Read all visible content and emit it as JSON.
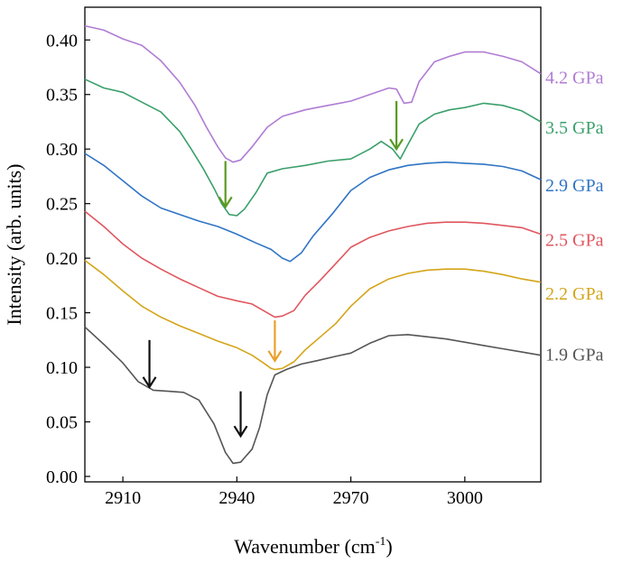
{
  "chart_data": {
    "type": "line",
    "title": "",
    "xlabel_main": "Wavenumber (cm",
    "xlabel_sup": "-1",
    "xlabel_close": ")",
    "ylabel": "Intensity (arb. units)",
    "xlim": [
      2900,
      3020
    ],
    "ylim": [
      -0.005,
      0.43
    ],
    "xticks": [
      2910,
      2940,
      2970,
      3000
    ],
    "yticks": [
      0.0,
      0.05,
      0.1,
      0.15,
      0.2,
      0.25,
      0.3,
      0.35,
      0.4
    ],
    "yticks_text": [
      "0.00",
      "0.05",
      "0.10",
      "0.15",
      "0.20",
      "0.25",
      "0.30",
      "0.35",
      "0.40"
    ],
    "series": [
      {
        "name": "1.9 GPa",
        "color": "#555555",
        "x": [
          2900,
          2905,
          2910,
          2914,
          2918,
          2922,
          2926,
          2930,
          2934,
          2937,
          2939,
          2941,
          2944,
          2946,
          2948,
          2950,
          2953,
          2957,
          2961,
          2966,
          2970,
          2975,
          2980,
          2985,
          2990,
          2995,
          3000,
          3005,
          3010,
          3015,
          3020
        ],
        "y": [
          0.137,
          0.121,
          0.104,
          0.087,
          0.079,
          0.078,
          0.077,
          0.07,
          0.048,
          0.022,
          0.012,
          0.013,
          0.025,
          0.045,
          0.075,
          0.093,
          0.098,
          0.103,
          0.106,
          0.11,
          0.113,
          0.122,
          0.129,
          0.13,
          0.128,
          0.126,
          0.123,
          0.12,
          0.117,
          0.114,
          0.111
        ]
      },
      {
        "name": "2.2 GPa",
        "color": "#d4a519",
        "x": [
          2900,
          2905,
          2910,
          2915,
          2920,
          2925,
          2930,
          2935,
          2940,
          2944,
          2947,
          2949,
          2950,
          2952,
          2955,
          2958,
          2962,
          2966,
          2970,
          2975,
          2980,
          2985,
          2990,
          2995,
          3000,
          3005,
          3010,
          3015,
          3020
        ],
        "y": [
          0.198,
          0.185,
          0.17,
          0.156,
          0.146,
          0.138,
          0.131,
          0.124,
          0.118,
          0.111,
          0.104,
          0.099,
          0.098,
          0.099,
          0.105,
          0.116,
          0.128,
          0.14,
          0.156,
          0.172,
          0.181,
          0.186,
          0.189,
          0.19,
          0.19,
          0.188,
          0.185,
          0.181,
          0.178
        ]
      },
      {
        "name": "2.5 GPa",
        "color": "#e0565e",
        "x": [
          2900,
          2905,
          2910,
          2915,
          2920,
          2925,
          2930,
          2935,
          2940,
          2944,
          2947,
          2950,
          2952,
          2955,
          2958,
          2962,
          2966,
          2970,
          2975,
          2980,
          2985,
          2990,
          2995,
          3000,
          3005,
          3010,
          3015,
          3020
        ],
        "y": [
          0.243,
          0.229,
          0.213,
          0.2,
          0.19,
          0.181,
          0.173,
          0.165,
          0.161,
          0.158,
          0.152,
          0.146,
          0.147,
          0.152,
          0.166,
          0.18,
          0.195,
          0.21,
          0.219,
          0.225,
          0.229,
          0.232,
          0.233,
          0.233,
          0.232,
          0.23,
          0.228,
          0.222
        ]
      },
      {
        "name": "2.9 GPa",
        "color": "#2f74c4",
        "x": [
          2900,
          2905,
          2910,
          2915,
          2920,
          2925,
          2930,
          2935,
          2940,
          2945,
          2949,
          2952,
          2954,
          2957,
          2960,
          2965,
          2970,
          2975,
          2980,
          2985,
          2990,
          2995,
          3000,
          3005,
          3010,
          3015,
          3020
        ],
        "y": [
          0.296,
          0.285,
          0.271,
          0.257,
          0.246,
          0.24,
          0.234,
          0.229,
          0.222,
          0.214,
          0.208,
          0.2,
          0.197,
          0.205,
          0.22,
          0.24,
          0.262,
          0.274,
          0.281,
          0.285,
          0.287,
          0.288,
          0.287,
          0.286,
          0.284,
          0.28,
          0.272
        ]
      },
      {
        "name": "3.5 GPa",
        "color": "#3a9f6b",
        "x": [
          2900,
          2905,
          2910,
          2915,
          2920,
          2925,
          2928,
          2931,
          2934,
          2936,
          2938,
          2940,
          2942,
          2945,
          2948,
          2952,
          2958,
          2964,
          2970,
          2975,
          2978,
          2981,
          2983,
          2985,
          2988,
          2992,
          2996,
          3000,
          3005,
          3010,
          3015,
          3020
        ],
        "y": [
          0.364,
          0.356,
          0.352,
          0.343,
          0.334,
          0.316,
          0.3,
          0.283,
          0.264,
          0.25,
          0.24,
          0.239,
          0.245,
          0.26,
          0.278,
          0.282,
          0.285,
          0.289,
          0.291,
          0.3,
          0.307,
          0.3,
          0.291,
          0.304,
          0.323,
          0.332,
          0.336,
          0.338,
          0.342,
          0.34,
          0.335,
          0.325
        ]
      },
      {
        "name": "4.2 GPa",
        "color": "#b07cd4",
        "x": [
          2900,
          2905,
          2910,
          2915,
          2920,
          2925,
          2929,
          2932,
          2935,
          2937,
          2939,
          2941,
          2944,
          2948,
          2952,
          2958,
          2964,
          2970,
          2975,
          2980,
          2982,
          2984,
          2986,
          2988,
          2992,
          2996,
          3000,
          3005,
          3010,
          3015,
          3020
        ],
        "y": [
          0.413,
          0.409,
          0.401,
          0.395,
          0.381,
          0.361,
          0.34,
          0.32,
          0.302,
          0.292,
          0.288,
          0.29,
          0.302,
          0.32,
          0.33,
          0.336,
          0.34,
          0.344,
          0.35,
          0.356,
          0.355,
          0.342,
          0.343,
          0.362,
          0.38,
          0.385,
          0.389,
          0.389,
          0.385,
          0.38,
          0.369
        ]
      }
    ],
    "arrows": [
      {
        "name": "black-arrow-1",
        "x": 2917,
        "y_tail": 0.125,
        "y_head": 0.082,
        "color": "#111111"
      },
      {
        "name": "black-arrow-2",
        "x": 2941,
        "y_tail": 0.078,
        "y_head": 0.037,
        "color": "#111111"
      },
      {
        "name": "orange-arrow",
        "x": 2950,
        "y_tail": 0.143,
        "y_head": 0.106,
        "color": "#e8a02a"
      },
      {
        "name": "green-arrow-1",
        "x": 2937,
        "y_tail": 0.289,
        "y_head": 0.247,
        "color": "#5a9a23"
      },
      {
        "name": "green-arrow-2",
        "x": 2982,
        "y_tail": 0.344,
        "y_head": 0.3,
        "color": "#5a9a23"
      }
    ],
    "labels": [
      {
        "name": "label-4-2",
        "text": "4.2 GPa",
        "y": 0.366,
        "color": "#b07cd4"
      },
      {
        "name": "label-3-5",
        "text": "3.5 GPa",
        "y": 0.32,
        "color": "#3a9f6b"
      },
      {
        "name": "label-2-9",
        "text": "2.9 GPa",
        "y": 0.267,
        "color": "#2f74c4"
      },
      {
        "name": "label-2-5",
        "text": "2.5 GPa",
        "y": 0.217,
        "color": "#e0565e"
      },
      {
        "name": "label-2-2",
        "text": "2.2 GPa",
        "y": 0.168,
        "color": "#d4a519"
      },
      {
        "name": "label-1-9",
        "text": "1.9 GPa",
        "y": 0.112,
        "color": "#555555"
      }
    ]
  }
}
